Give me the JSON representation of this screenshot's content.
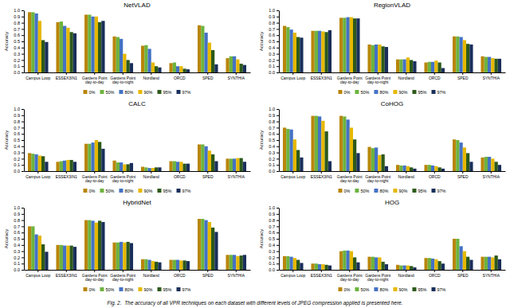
{
  "chart_data": [
    {
      "type": "bar",
      "title": "NetVLAD",
      "ylabel": "Accuracy",
      "categories": [
        "Campus Loop",
        "ESSEX3IN1",
        "Gardens Point\nday-to-day",
        "Gardens Point\nday-to-night",
        "Nordland",
        "ORCD",
        "SPED",
        "SYNTHIA"
      ],
      "series": [
        {
          "name": "0%",
          "color": "#b8860b",
          "values": [
            0.97,
            0.81,
            0.93,
            0.58,
            0.43,
            0.15,
            0.76,
            0.23
          ]
        },
        {
          "name": "50%",
          "color": "#6db33f",
          "values": [
            0.97,
            0.82,
            0.93,
            0.57,
            0.44,
            0.16,
            0.75,
            0.26
          ]
        },
        {
          "name": "80%",
          "color": "#4472c4",
          "values": [
            0.95,
            0.75,
            0.9,
            0.54,
            0.38,
            0.1,
            0.64,
            0.26
          ]
        },
        {
          "name": "90%",
          "color": "#e6b800",
          "values": [
            0.83,
            0.72,
            0.9,
            0.3,
            0.16,
            0.1,
            0.48,
            0.21
          ]
        },
        {
          "name": "95%",
          "color": "#2d5a1b",
          "values": [
            0.52,
            0.65,
            0.81,
            0.2,
            0.1,
            0.06,
            0.36,
            0.14
          ]
        },
        {
          "name": "97%",
          "color": "#1a2f5a",
          "values": [
            0.49,
            0.63,
            0.83,
            0.15,
            0.08,
            0.05,
            0.13,
            0.12
          ]
        }
      ],
      "ylim": [
        0.0,
        1.0
      ],
      "yticks": [
        {
          "value": 0.0,
          "label": "0.0"
        },
        0.1,
        0.2,
        0.3,
        0.4,
        0.5,
        0.6,
        0.7,
        0.8,
        0.9,
        {
          "value": 1.0,
          "label": "1.0"
        }
      ],
      "grid": false,
      "legend": "bottom"
    },
    {
      "type": "bar",
      "title": "RegionVLAD",
      "ylabel": "Accuracy",
      "categories": [
        "Campus Loop",
        "ESSEX3IN1",
        "Gardens Point\nday-to-day",
        "Gardens Point\nday-to-night",
        "Nordland",
        "ORCD",
        "SPED",
        "SYNTHIA"
      ],
      "series": [
        {
          "name": "0%",
          "color": "#b8860b",
          "values": [
            0.75,
            0.67,
            0.88,
            0.45,
            0.21,
            0.16,
            0.58,
            0.26
          ]
        },
        {
          "name": "50%",
          "color": "#6db33f",
          "values": [
            0.73,
            0.67,
            0.88,
            0.44,
            0.21,
            0.17,
            0.58,
            0.25
          ]
        },
        {
          "name": "80%",
          "color": "#4472c4",
          "values": [
            0.69,
            0.67,
            0.89,
            0.45,
            0.21,
            0.17,
            0.57,
            0.25
          ]
        },
        {
          "name": "90%",
          "color": "#e6b800",
          "values": [
            0.64,
            0.66,
            0.89,
            0.45,
            0.24,
            0.19,
            0.52,
            0.23
          ]
        },
        {
          "name": "95%",
          "color": "#2d5a1b",
          "values": [
            0.57,
            0.65,
            0.87,
            0.42,
            0.2,
            0.16,
            0.46,
            0.22
          ]
        },
        {
          "name": "97%",
          "color": "#1a2f5a",
          "values": [
            0.56,
            0.68,
            0.87,
            0.41,
            0.18,
            0.07,
            0.45,
            0.22
          ]
        }
      ],
      "ylim": [
        0.0,
        1.0
      ],
      "yticks": [
        {
          "value": 0.0,
          "label": "0.0"
        },
        0.1,
        0.2,
        0.3,
        0.4,
        0.5,
        0.6,
        0.7,
        0.8,
        0.9,
        {
          "value": 1.0,
          "label": "1.0"
        }
      ],
      "grid": false,
      "legend": "bottom"
    },
    {
      "type": "bar",
      "title": "CALC",
      "ylabel": "Accuracy",
      "categories": [
        "Campus Loop",
        "ESSEX3IN1",
        "Gardens Point\nday-to-day",
        "Gardens Point\nday-to-night",
        "Nordland",
        "ORCD",
        "SPED",
        "SYNTHIA"
      ],
      "series": [
        {
          "name": "0%",
          "color": "#b8860b",
          "values": [
            0.29,
            0.15,
            0.44,
            0.17,
            0.07,
            0.16,
            0.43,
            0.2
          ]
        },
        {
          "name": "50%",
          "color": "#6db33f",
          "values": [
            0.28,
            0.16,
            0.44,
            0.14,
            0.06,
            0.16,
            0.43,
            0.2
          ]
        },
        {
          "name": "80%",
          "color": "#4472c4",
          "values": [
            0.27,
            0.17,
            0.46,
            0.14,
            0.05,
            0.15,
            0.4,
            0.2
          ]
        },
        {
          "name": "90%",
          "color": "#e6b800",
          "values": [
            0.25,
            0.18,
            0.5,
            0.11,
            0.05,
            0.15,
            0.33,
            0.21
          ]
        },
        {
          "name": "95%",
          "color": "#2d5a1b",
          "values": [
            0.24,
            0.18,
            0.47,
            0.11,
            0.06,
            0.12,
            0.27,
            0.21
          ]
        },
        {
          "name": "97%",
          "color": "#1a2f5a",
          "values": [
            0.15,
            0.15,
            0.36,
            0.13,
            0.06,
            0.12,
            0.16,
            0.15
          ]
        }
      ],
      "ylim": [
        0.0,
        1.0
      ],
      "yticks": [
        {
          "value": 0.0,
          "label": "0.0"
        },
        0.1,
        0.2,
        0.3,
        0.4,
        0.5,
        0.6,
        0.7,
        0.8,
        0.9,
        {
          "value": 1.0,
          "label": "1.0"
        }
      ],
      "grid": false,
      "legend": "bottom"
    },
    {
      "type": "bar",
      "title": "CoHOG",
      "ylabel": "Accuracy",
      "categories": [
        "Campus Loop",
        "ESSEX3IN1",
        "Gardens Point\nday-to-day",
        "Gardens Point\nday-to-night",
        "Nordland",
        "ORCD",
        "SPED",
        "SYNTHIA"
      ],
      "series": [
        {
          "name": "0%",
          "color": "#b8860b",
          "values": [
            0.7,
            0.89,
            0.89,
            0.39,
            0.1,
            0.1,
            0.51,
            0.22
          ]
        },
        {
          "name": "50%",
          "color": "#6db33f",
          "values": [
            0.68,
            0.89,
            0.88,
            0.37,
            0.09,
            0.1,
            0.5,
            0.23
          ]
        },
        {
          "name": "80%",
          "color": "#4472c4",
          "values": [
            0.67,
            0.88,
            0.83,
            0.38,
            0.09,
            0.09,
            0.46,
            0.23
          ]
        },
        {
          "name": "90%",
          "color": "#e6b800",
          "values": [
            0.51,
            0.81,
            0.7,
            0.26,
            0.08,
            0.08,
            0.38,
            0.2
          ]
        },
        {
          "name": "95%",
          "color": "#2d5a1b",
          "values": [
            0.34,
            0.64,
            0.51,
            0.27,
            0.06,
            0.06,
            0.29,
            0.15
          ]
        },
        {
          "name": "97%",
          "color": "#1a2f5a",
          "values": [
            0.22,
            0.16,
            0.29,
            0.08,
            0.04,
            0.04,
            0.15,
            0.1
          ]
        }
      ],
      "ylim": [
        0.0,
        1.0
      ],
      "yticks": [
        {
          "value": 0.0,
          "label": "0.0"
        },
        0.1,
        0.2,
        0.3,
        0.4,
        0.5,
        0.6,
        0.7,
        0.8,
        0.9,
        {
          "value": 1.0,
          "label": "1.0"
        }
      ],
      "grid": false,
      "legend": "bottom"
    },
    {
      "type": "bar",
      "title": "HybridNet",
      "ylabel": "Accuracy",
      "categories": [
        "Campus Loop",
        "ESSEX3IN1",
        "Gardens Point\nday-to-day",
        "Gardens Point\nday-to-night",
        "Nordland",
        "ORCD",
        "SPED",
        "SYNTHIA"
      ],
      "series": [
        {
          "name": "0%",
          "color": "#b8860b",
          "values": [
            0.7,
            0.4,
            0.8,
            0.44,
            0.17,
            0.16,
            0.82,
            0.24
          ]
        },
        {
          "name": "50%",
          "color": "#6db33f",
          "values": [
            0.7,
            0.4,
            0.8,
            0.44,
            0.17,
            0.16,
            0.82,
            0.24
          ]
        },
        {
          "name": "80%",
          "color": "#4472c4",
          "values": [
            0.57,
            0.39,
            0.79,
            0.45,
            0.16,
            0.16,
            0.8,
            0.24
          ]
        },
        {
          "name": "90%",
          "color": "#e6b800",
          "values": [
            0.55,
            0.39,
            0.76,
            0.44,
            0.14,
            0.15,
            0.77,
            0.22
          ]
        },
        {
          "name": "95%",
          "color": "#2d5a1b",
          "values": [
            0.41,
            0.39,
            0.79,
            0.45,
            0.13,
            0.15,
            0.68,
            0.23
          ]
        },
        {
          "name": "97%",
          "color": "#1a2f5a",
          "values": [
            0.29,
            0.37,
            0.77,
            0.43,
            0.12,
            0.14,
            0.61,
            0.24
          ]
        }
      ],
      "ylim": [
        0.0,
        1.0
      ],
      "yticks": [
        {
          "value": 0.0,
          "label": "0.0"
        },
        0.1,
        0.2,
        0.3,
        0.4,
        0.5,
        0.6,
        0.7,
        0.8,
        0.9,
        {
          "value": 1.0,
          "label": "1.0"
        }
      ],
      "grid": false,
      "legend": "bottom"
    },
    {
      "type": "bar",
      "title": "HOG",
      "ylabel": "Accuracy",
      "categories": [
        "Campus Loop",
        "ESSEX3IN1",
        "Gardens Point\nday-to-day",
        "Gardens Point\nday-to-night",
        "Nordland",
        "ORCD",
        "SPED",
        "SYNTHIA"
      ],
      "series": [
        {
          "name": "0%",
          "color": "#b8860b",
          "values": [
            0.22,
            0.1,
            0.3,
            0.21,
            0.08,
            0.19,
            0.5,
            0.21
          ]
        },
        {
          "name": "50%",
          "color": "#6db33f",
          "values": [
            0.22,
            0.1,
            0.31,
            0.21,
            0.07,
            0.19,
            0.5,
            0.21
          ]
        },
        {
          "name": "80%",
          "color": "#4472c4",
          "values": [
            0.21,
            0.09,
            0.31,
            0.2,
            0.07,
            0.18,
            0.38,
            0.21
          ]
        },
        {
          "name": "90%",
          "color": "#e6b800",
          "values": [
            0.19,
            0.09,
            0.3,
            0.2,
            0.07,
            0.17,
            0.3,
            0.2
          ]
        },
        {
          "name": "95%",
          "color": "#2d5a1b",
          "values": [
            0.16,
            0.08,
            0.2,
            0.13,
            0.06,
            0.14,
            0.21,
            0.23
          ]
        },
        {
          "name": "97%",
          "color": "#1a2f5a",
          "values": [
            0.11,
            0.07,
            0.12,
            0.09,
            0.04,
            0.1,
            0.16,
            0.17
          ]
        }
      ],
      "ylim": [
        0.0,
        1.0
      ],
      "yticks": [
        {
          "value": 0.0,
          "label": "0.0"
        },
        0.1,
        0.2,
        0.3,
        0.4,
        0.5,
        0.6,
        0.7,
        0.8,
        0.9,
        {
          "value": 1.0,
          "label": "1.0"
        }
      ],
      "grid": false,
      "legend": "bottom",
      "annotations": [
        "Fig. 2.  The accuracy of all VPR techniques on each dataset with different levels of JPEG compression applied is presented here."
      ]
    }
  ]
}
